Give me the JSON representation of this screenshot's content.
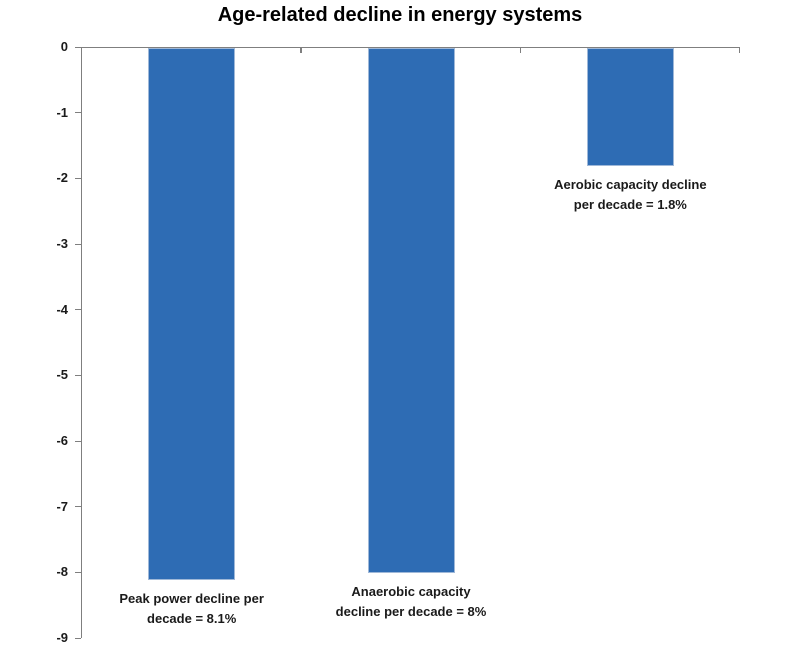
{
  "title": "Age-related decline in energy systems",
  "colors": {
    "bar_fill": "#2e6cb4",
    "bar_edge": "#9fb8d8",
    "axis": "#7f7f7f",
    "text": "#1a1a1a",
    "background": "#ffffff"
  },
  "chart_data": {
    "type": "bar",
    "orientation": "vertical",
    "title": "Age-related decline in energy systems",
    "xlabel": "",
    "ylabel": "",
    "categories": [
      "Peak power",
      "Anaerobic capacity",
      "Aerobic capacity"
    ],
    "values": [
      -8.1,
      -8,
      -1.8
    ],
    "bar_labels": [
      [
        "Peak power decline per",
        "decade = 8.1%"
      ],
      [
        "Anaerobic capacity",
        "decline per decade = 8%"
      ],
      [
        "Aerobic capacity decline",
        "per decade = 1.8%"
      ]
    ],
    "ylim": [
      -9,
      0
    ],
    "yticks": [
      0,
      -1,
      -2,
      -3,
      -4,
      -5,
      -6,
      -7,
      -8,
      -9
    ],
    "grid": false,
    "legend": false
  }
}
